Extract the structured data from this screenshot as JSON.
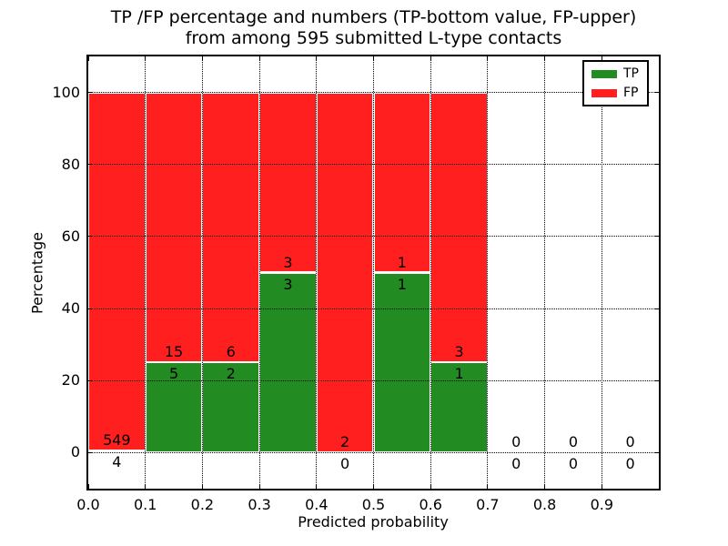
{
  "chart_data": {
    "type": "bar",
    "stacked": true,
    "title_lines": [
      "TP /FP percentage and numbers (TP-bottom value, FP-upper)",
      "from among 595 submitted L-type contacts"
    ],
    "xlabel": "Predicted probability",
    "ylabel": "Percentage",
    "xlim": [
      0.0,
      1.0
    ],
    "ylim": [
      -10,
      110
    ],
    "xticks": [
      "0.0",
      "0.1",
      "0.2",
      "0.3",
      "0.4",
      "0.5",
      "0.6",
      "0.7",
      "0.8",
      "0.9"
    ],
    "xtick_values": [
      0.0,
      0.1,
      0.2,
      0.3,
      0.4,
      0.5,
      0.6,
      0.7,
      0.8,
      0.9
    ],
    "yticks": [
      "0",
      "20",
      "40",
      "60",
      "80",
      "100"
    ],
    "ytick_values": [
      0,
      20,
      40,
      60,
      80,
      100
    ],
    "grid": true,
    "grid_style": "dotted",
    "bar_edge_color": "#ffffff",
    "legend_position": "upper right",
    "series": [
      {
        "name": "TP",
        "color": "#228b22"
      },
      {
        "name": "FP",
        "color": "#ff1f1f"
      }
    ],
    "bins": [
      {
        "start": 0.0,
        "end": 0.1,
        "tp_count": 4,
        "fp_count": 549,
        "tp_percent": 0.72,
        "total_percent": 100
      },
      {
        "start": 0.1,
        "end": 0.2,
        "tp_count": 5,
        "fp_count": 15,
        "tp_percent": 25,
        "total_percent": 100
      },
      {
        "start": 0.2,
        "end": 0.3,
        "tp_count": 2,
        "fp_count": 6,
        "tp_percent": 25,
        "total_percent": 100
      },
      {
        "start": 0.3,
        "end": 0.4,
        "tp_count": 3,
        "fp_count": 3,
        "tp_percent": 50,
        "total_percent": 100
      },
      {
        "start": 0.4,
        "end": 0.5,
        "tp_count": 0,
        "fp_count": 2,
        "tp_percent": 0,
        "total_percent": 100
      },
      {
        "start": 0.5,
        "end": 0.6,
        "tp_count": 1,
        "fp_count": 1,
        "tp_percent": 50,
        "total_percent": 100
      },
      {
        "start": 0.6,
        "end": 0.7,
        "tp_count": 1,
        "fp_count": 3,
        "tp_percent": 25,
        "total_percent": 100
      },
      {
        "start": 0.7,
        "end": 0.8,
        "tp_count": 0,
        "fp_count": 0,
        "tp_percent": 0,
        "total_percent": 0
      },
      {
        "start": 0.8,
        "end": 0.9,
        "tp_count": 0,
        "fp_count": 0,
        "tp_percent": 0,
        "total_percent": 0
      },
      {
        "start": 0.9,
        "end": 1.0,
        "tp_count": 0,
        "fp_count": 0,
        "tp_percent": 0,
        "total_percent": 0
      }
    ]
  }
}
